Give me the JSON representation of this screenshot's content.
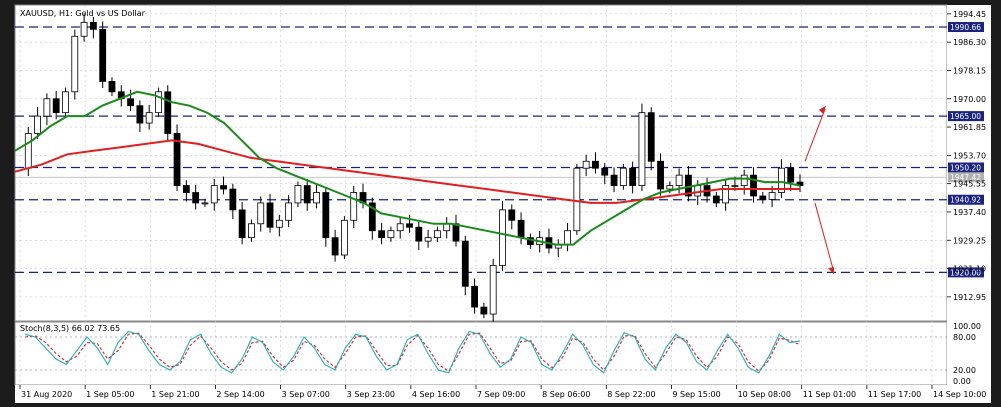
{
  "chart_title": "XAUUSD, H1:  Gold vs US Dollar",
  "oscillator_title": "Stoch(8,3,5) 66.02 73.65",
  "colors": {
    "background": "#ffffff",
    "frame": "#1c1c1c",
    "candle": "#000000",
    "ma_fast": "#1a8a1a",
    "ma_slow": "#e02020",
    "level_line": "#1a237e",
    "arrow": "#e02020",
    "stoch_main": "#20b0c0",
    "stoch_signal": "#e02020"
  },
  "icons": [
    "up-arrow-icon",
    "down-arrow-icon"
  ],
  "chart_data": {
    "type": "candlestick",
    "y_ticks": [
      "1994.45",
      "1986.30",
      "1978.15",
      "1970.00",
      "1961.85",
      "1953.70",
      "1945.55",
      "1937.40",
      "1929.25",
      "1921.10",
      "1912.95"
    ],
    "x_ticks": [
      "31 Aug 2020",
      "1 Sep 05:00",
      "1 Sep 21:00",
      "2 Sep 14:00",
      "3 Sep 07:00",
      "3 Sep 23:00",
      "4 Sep 16:00",
      "7 Sep 09:00",
      "8 Sep 06:00",
      "8 Sep 22:00",
      "9 Sep 15:00",
      "10 Sep 08:00",
      "11 Sep 01:00",
      "11 Sep 17:00",
      "14 Sep 10:00"
    ],
    "ylim": [
      1906,
      1997
    ],
    "levels": [
      {
        "value": 1990.66,
        "label": "1990.66",
        "style": "dashed"
      },
      {
        "value": 1965.0,
        "label": "1965.00",
        "style": "dashed"
      },
      {
        "value": 1950.2,
        "label": "1950.20",
        "style": "dashed"
      },
      {
        "value": 1947.4,
        "label": "1947.42",
        "style": "solid-gray"
      },
      {
        "value": 1940.92,
        "label": "1940.92",
        "style": "dashed"
      },
      {
        "value": 1920.0,
        "label": "1920.00",
        "style": "dashed"
      }
    ],
    "close_path": [
      1950,
      1960,
      1965,
      1970,
      1966,
      1972,
      1988,
      1992,
      1990,
      1975,
      1972,
      1970,
      1968,
      1963,
      1966,
      1972,
      1960,
      1945,
      1943,
      1940,
      1940,
      1945,
      1944,
      1938,
      1930,
      1934,
      1940,
      1933,
      1935,
      1940,
      1945,
      1940,
      1943,
      1930,
      1925,
      1935,
      1943,
      1940,
      1932,
      1930,
      1932,
      1934,
      1933,
      1929,
      1930,
      1932,
      1934,
      1929,
      1916,
      1910,
      1908,
      1922,
      1938,
      1935,
      1930,
      1928,
      1930,
      1927,
      1928,
      1932,
      1950,
      1952,
      1950,
      1948,
      1945,
      1950,
      1945,
      1966,
      1952,
      1944,
      1945,
      1948,
      1942,
      1945,
      1942,
      1940,
      1945,
      1945,
      1948,
      1942,
      1941,
      1943,
      1950,
      1946,
      1945
    ],
    "ma_fast": [
      1955,
      1958,
      1962,
      1965,
      1965,
      1968,
      1970,
      1972,
      1971,
      1969,
      1968,
      1966,
      1963,
      1958,
      1953,
      1950,
      1948,
      1946,
      1944,
      1942,
      1940,
      1937,
      1936,
      1935,
      1934,
      1934,
      1933,
      1932,
      1931,
      1930,
      1929,
      1928,
      1928,
      1932,
      1935,
      1938,
      1941,
      1943,
      1944,
      1945,
      1946,
      1947,
      1947,
      1946,
      1946,
      1945
    ],
    "ma_slow": [
      1949,
      1951,
      1954,
      1955,
      1956,
      1957,
      1958,
      1957,
      1955,
      1953,
      1952,
      1951,
      1950,
      1949,
      1948,
      1947,
      1946,
      1945,
      1944,
      1943,
      1942,
      1941,
      1940,
      1940,
      1941,
      1942,
      1943,
      1944,
      1944,
      1944,
      1944
    ],
    "stochastic": {
      "ylim": [
        0,
        100
      ],
      "y_ticks": [
        "100.00",
        "80.00",
        "20.00",
        "0.00"
      ],
      "levels": [
        80,
        20
      ],
      "main": [
        85,
        80,
        60,
        40,
        30,
        55,
        80,
        60,
        30,
        70,
        90,
        85,
        55,
        30,
        20,
        35,
        75,
        85,
        50,
        25,
        15,
        40,
        80,
        70,
        35,
        20,
        45,
        80,
        60,
        30,
        20,
        60,
        85,
        80,
        45,
        20,
        30,
        75,
        85,
        50,
        20,
        15,
        60,
        90,
        85,
        50,
        25,
        40,
        80,
        70,
        30,
        20,
        50,
        85,
        65,
        30,
        15,
        55,
        88,
        80,
        40,
        20,
        60,
        85,
        70,
        35,
        20,
        55,
        85,
        60,
        25,
        15,
        45,
        85,
        70,
        73
      ],
      "signal": [
        80,
        82,
        70,
        50,
        35,
        45,
        70,
        68,
        40,
        55,
        85,
        87,
        65,
        40,
        25,
        30,
        65,
        82,
        60,
        35,
        20,
        32,
        70,
        72,
        45,
        25,
        38,
        72,
        65,
        40,
        25,
        50,
        80,
        82,
        55,
        28,
        28,
        65,
        83,
        60,
        30,
        18,
        50,
        85,
        87,
        60,
        32,
        36,
        72,
        73,
        40,
        24,
        42,
        78,
        70,
        40,
        20,
        45,
        82,
        83,
        50,
        25,
        50,
        80,
        75,
        45,
        25,
        45,
        80,
        68,
        35,
        18,
        38,
        78,
        74,
        66
      ]
    }
  }
}
